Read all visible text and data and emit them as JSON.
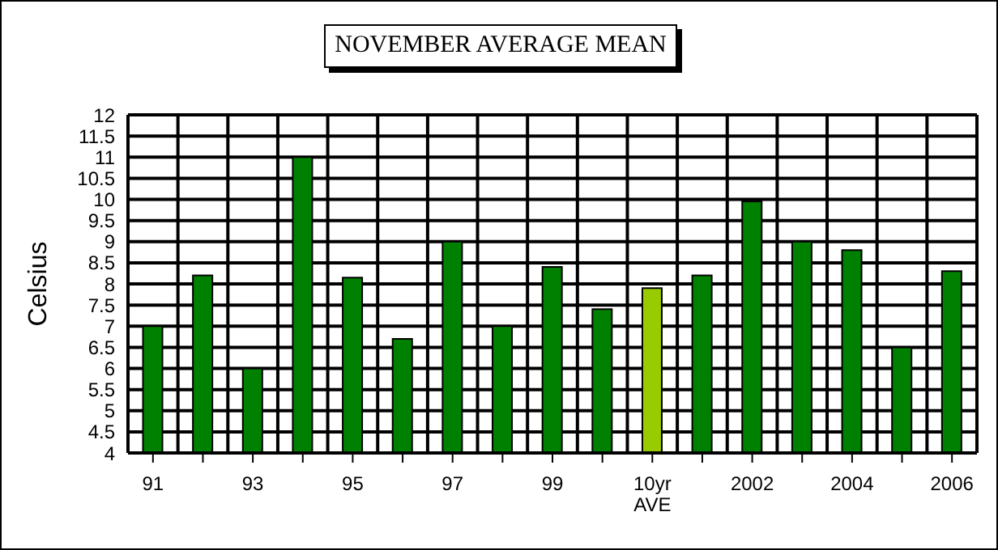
{
  "chart_data": {
    "type": "bar",
    "title": "NOVEMBER AVERAGE MEAN",
    "ylabel": "Celsius",
    "categories": [
      "91",
      null,
      "93",
      null,
      "95",
      null,
      "97",
      null,
      "99",
      null,
      "10yr\nAVE",
      null,
      "2002",
      null,
      "2004",
      null,
      "2006"
    ],
    "values": [
      7,
      8.2,
      6,
      11,
      8.15,
      6.7,
      9,
      7,
      8.4,
      7.4,
      7.9,
      8.2,
      9.95,
      9,
      8.8,
      6.5,
      8.3
    ],
    "colors": [
      "#008000",
      "#008000",
      "#008000",
      "#008000",
      "#008000",
      "#008000",
      "#008000",
      "#008000",
      "#008000",
      "#008000",
      "#99cc00",
      "#008000",
      "#008000",
      "#008000",
      "#008000",
      "#008000",
      "#008000"
    ],
    "ylim": [
      4,
      12
    ],
    "yticks": [
      4,
      4.5,
      5,
      5.5,
      6,
      6.5,
      7,
      7.5,
      8,
      8.5,
      9,
      9.5,
      10,
      10.5,
      11,
      11.5,
      12
    ],
    "grid": true
  }
}
